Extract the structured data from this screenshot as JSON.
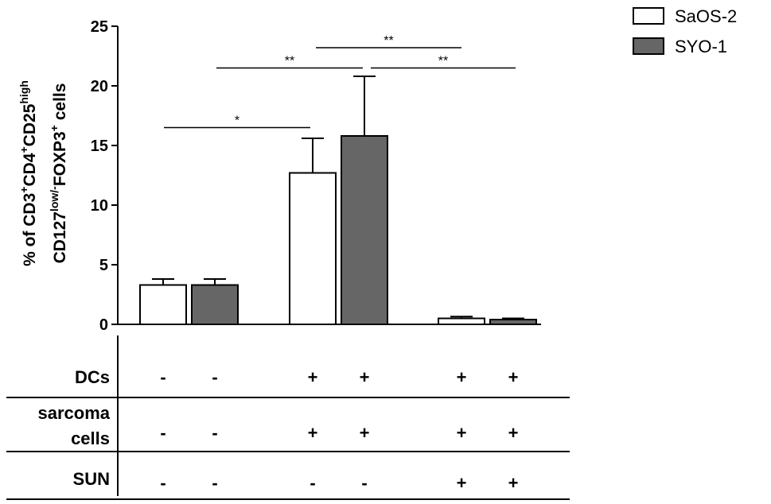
{
  "chart_data": {
    "type": "bar",
    "ylabel_parts": {
      "line1": [
        {
          "text": "% of CD3",
          "sup": false
        },
        {
          "text": "+",
          "sup": true
        },
        {
          "text": "CD4",
          "sup": false
        },
        {
          "text": "+",
          "sup": true
        },
        {
          "text": "CD25",
          "sup": false
        },
        {
          "text": "high",
          "sup": true
        }
      ],
      "line2": [
        {
          "text": "CD127",
          "sup": false
        },
        {
          "text": "low/-",
          "sup": true
        },
        {
          "text": "FOXP3",
          "sup": false
        },
        {
          "text": "+",
          "sup": true
        },
        {
          "text": " cells",
          "sup": false
        }
      ]
    },
    "ylim": [
      0,
      25
    ],
    "yticks": [
      "0",
      "5",
      "10",
      "15",
      "20",
      "25"
    ],
    "ytick_values": [
      0,
      5,
      10,
      15,
      20,
      25
    ],
    "legend_position": "top-right",
    "series": [
      {
        "name": "SaOS-2",
        "color": "#ffffff",
        "values": [
          3.3,
          12.7,
          0.5
        ],
        "errors": [
          0.5,
          2.9,
          0.15
        ]
      },
      {
        "name": "SYO-1",
        "color": "#666666",
        "values": [
          3.3,
          15.8,
          0.4
        ],
        "errors": [
          0.5,
          5.0,
          0.1
        ]
      }
    ],
    "groups": 3,
    "significance": [
      {
        "label": "*",
        "from_group": 0,
        "to_group": 1,
        "level": 16.5
      },
      {
        "label": "**",
        "from_group": 0,
        "to_group": 1,
        "level": 21.5
      },
      {
        "label": "**",
        "from_group": 1,
        "to_group": 2,
        "level": 23.2
      },
      {
        "label": "**",
        "from_group": 1,
        "to_group": 2,
        "level": 21.5
      }
    ],
    "condition_table": {
      "rows": [
        {
          "label": [
            "DCs"
          ],
          "values": [
            "-",
            "-",
            "+",
            "+",
            "+",
            "+"
          ]
        },
        {
          "label": [
            "sarcoma",
            "cells"
          ],
          "values": [
            "-",
            "-",
            "+",
            "+",
            "+",
            "+"
          ]
        },
        {
          "label": [
            "SUN"
          ],
          "values": [
            "-",
            "-",
            "-",
            "-",
            "+",
            "+"
          ]
        }
      ]
    }
  }
}
